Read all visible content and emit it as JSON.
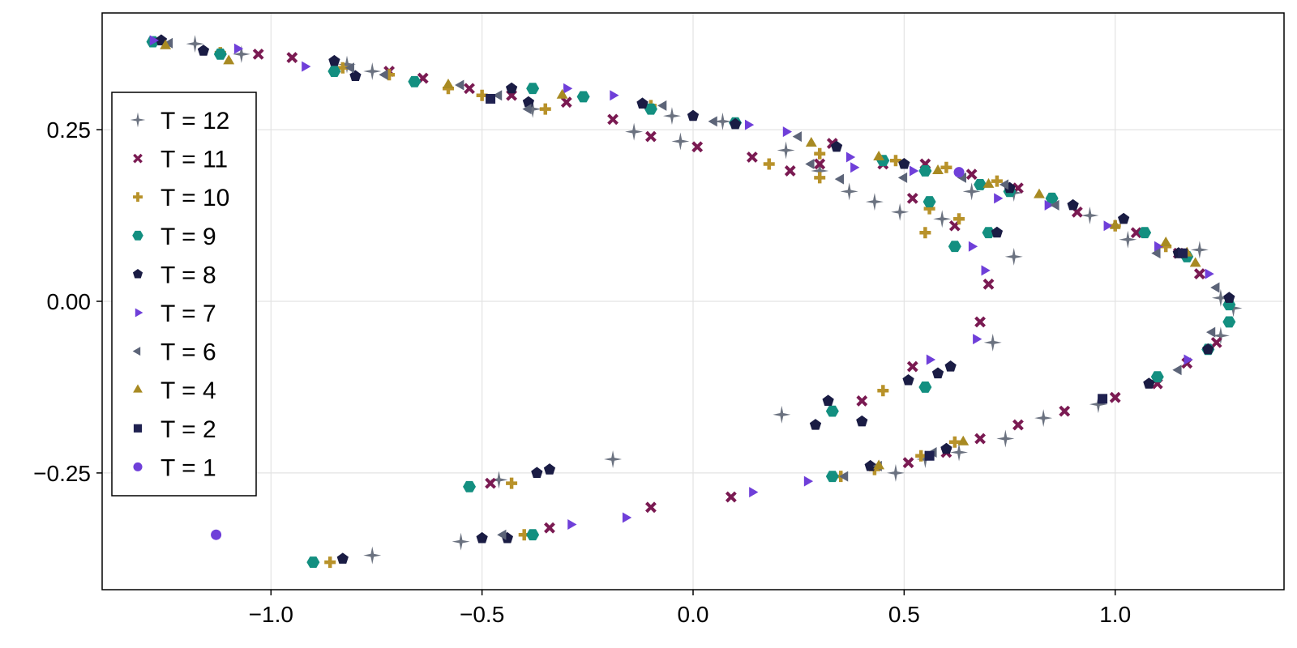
{
  "chart_data": {
    "type": "scatter",
    "title": "",
    "xlabel": "",
    "ylabel": "",
    "xlim": [
      -1.4,
      1.4
    ],
    "ylim": [
      -0.42,
      0.42
    ],
    "xticks": [
      -1.0,
      -0.5,
      0.0,
      0.5,
      1.0
    ],
    "xtick_labels": [
      "−1.0",
      "−0.5",
      "0.0",
      "0.5",
      "1.0"
    ],
    "yticks": [
      -0.25,
      0.0,
      0.25
    ],
    "ytick_labels": [
      "−0.25",
      "0.00",
      "0.25"
    ],
    "grid": true,
    "legend_position": "left",
    "series": [
      {
        "name": "T = 12",
        "marker": "star4",
        "color": "#6b7280",
        "points": [
          [
            -1.18,
            0.375
          ],
          [
            -1.07,
            0.36
          ],
          [
            -0.82,
            0.345
          ],
          [
            -0.76,
            0.335
          ],
          [
            -0.38,
            0.28
          ],
          [
            -0.14,
            0.247
          ],
          [
            -0.03,
            0.233
          ],
          [
            -0.05,
            0.27
          ],
          [
            0.07,
            0.262
          ],
          [
            0.22,
            0.22
          ],
          [
            0.3,
            0.19
          ],
          [
            0.37,
            0.16
          ],
          [
            0.43,
            0.145
          ],
          [
            0.49,
            0.13
          ],
          [
            0.59,
            0.12
          ],
          [
            0.66,
            0.16
          ],
          [
            0.76,
            0.158
          ],
          [
            0.94,
            0.125
          ],
          [
            1.03,
            0.09
          ],
          [
            1.2,
            0.075
          ],
          [
            1.25,
            0.005
          ],
          [
            1.28,
            -0.01
          ],
          [
            1.25,
            -0.05
          ],
          [
            0.96,
            -0.15
          ],
          [
            0.83,
            -0.17
          ],
          [
            0.74,
            -0.2
          ],
          [
            0.63,
            -0.22
          ],
          [
            0.55,
            -0.23
          ],
          [
            0.48,
            -0.25
          ],
          [
            0.76,
            0.065
          ],
          [
            0.71,
            -0.06
          ],
          [
            0.21,
            -0.165
          ],
          [
            -0.19,
            -0.23
          ],
          [
            -0.46,
            -0.26
          ],
          [
            -0.55,
            -0.35
          ],
          [
            -0.76,
            -0.37
          ]
        ]
      },
      {
        "name": "T = 11",
        "marker": "x",
        "color": "#7a1a52",
        "points": [
          [
            -1.03,
            0.36
          ],
          [
            -0.95,
            0.355
          ],
          [
            -0.72,
            0.335
          ],
          [
            -0.64,
            0.325
          ],
          [
            -0.53,
            0.31
          ],
          [
            -0.43,
            0.3
          ],
          [
            -0.3,
            0.29
          ],
          [
            -0.19,
            0.265
          ],
          [
            -0.1,
            0.24
          ],
          [
            0.01,
            0.225
          ],
          [
            0.14,
            0.21
          ],
          [
            0.23,
            0.19
          ],
          [
            0.33,
            0.23
          ],
          [
            0.45,
            0.2
          ],
          [
            0.55,
            0.2
          ],
          [
            0.66,
            0.185
          ],
          [
            0.77,
            0.165
          ],
          [
            0.91,
            0.13
          ],
          [
            1.05,
            0.1
          ],
          [
            1.15,
            0.07
          ],
          [
            1.2,
            0.04
          ],
          [
            1.24,
            -0.06
          ],
          [
            1.17,
            -0.09
          ],
          [
            1.1,
            -0.12
          ],
          [
            1.0,
            -0.14
          ],
          [
            0.88,
            -0.16
          ],
          [
            0.77,
            -0.18
          ],
          [
            0.68,
            -0.2
          ],
          [
            0.6,
            -0.22
          ],
          [
            0.51,
            -0.235
          ],
          [
            0.3,
            0.2
          ],
          [
            0.52,
            0.15
          ],
          [
            0.62,
            0.11
          ],
          [
            0.7,
            0.025
          ],
          [
            0.68,
            -0.03
          ],
          [
            0.52,
            -0.095
          ],
          [
            0.4,
            -0.145
          ],
          [
            0.09,
            -0.285
          ],
          [
            -0.1,
            -0.3
          ],
          [
            -0.34,
            -0.33
          ],
          [
            -0.48,
            -0.265
          ]
        ]
      },
      {
        "name": "T = 10",
        "marker": "plus",
        "color": "#b8922a",
        "points": [
          [
            -1.12,
            0.362
          ],
          [
            -0.83,
            0.34
          ],
          [
            -0.72,
            0.33
          ],
          [
            -0.58,
            0.31
          ],
          [
            -0.5,
            0.3
          ],
          [
            -0.35,
            0.28
          ],
          [
            -0.1,
            0.285
          ],
          [
            0.18,
            0.2
          ],
          [
            0.3,
            0.215
          ],
          [
            0.48,
            0.205
          ],
          [
            0.6,
            0.195
          ],
          [
            0.72,
            0.175
          ],
          [
            0.85,
            0.15
          ],
          [
            1.0,
            0.11
          ],
          [
            1.12,
            0.08
          ],
          [
            0.56,
            0.135
          ],
          [
            0.63,
            0.12
          ],
          [
            0.55,
            0.1
          ],
          [
            0.3,
            0.18
          ],
          [
            0.45,
            -0.13
          ],
          [
            0.62,
            -0.205
          ],
          [
            0.54,
            -0.225
          ],
          [
            0.43,
            -0.245
          ],
          [
            0.35,
            -0.255
          ],
          [
            -0.43,
            -0.265
          ],
          [
            -0.86,
            -0.38
          ],
          [
            -0.4,
            -0.34
          ]
        ]
      },
      {
        "name": "T = 9",
        "marker": "hexagon",
        "color": "#138f80",
        "points": [
          [
            -1.28,
            0.378
          ],
          [
            -1.12,
            0.36
          ],
          [
            -0.85,
            0.335
          ],
          [
            -0.66,
            0.32
          ],
          [
            -0.38,
            0.31
          ],
          [
            -0.26,
            0.298
          ],
          [
            -0.1,
            0.28
          ],
          [
            0.1,
            0.26
          ],
          [
            0.45,
            0.205
          ],
          [
            0.55,
            0.19
          ],
          [
            0.68,
            0.17
          ],
          [
            0.75,
            0.16
          ],
          [
            0.85,
            0.15
          ],
          [
            1.07,
            0.1
          ],
          [
            1.17,
            0.065
          ],
          [
            1.27,
            -0.005
          ],
          [
            1.27,
            -0.03
          ],
          [
            1.22,
            -0.07
          ],
          [
            1.1,
            -0.11
          ],
          [
            0.55,
            -0.125
          ],
          [
            0.56,
            0.145
          ],
          [
            0.7,
            0.1
          ],
          [
            0.62,
            0.08
          ],
          [
            0.33,
            -0.16
          ],
          [
            0.33,
            -0.255
          ],
          [
            -0.53,
            -0.27
          ],
          [
            -0.9,
            -0.38
          ],
          [
            -0.38,
            -0.34
          ]
        ]
      },
      {
        "name": "T = 8",
        "marker": "pentagon",
        "color": "#1a1c44",
        "points": [
          [
            -1.26,
            0.38
          ],
          [
            -1.16,
            0.365
          ],
          [
            -0.85,
            0.35
          ],
          [
            -0.8,
            0.328
          ],
          [
            -0.43,
            0.31
          ],
          [
            -0.39,
            0.29
          ],
          [
            -0.12,
            0.288
          ],
          [
            0.0,
            0.27
          ],
          [
            0.1,
            0.258
          ],
          [
            0.34,
            0.225
          ],
          [
            0.5,
            0.2
          ],
          [
            0.75,
            0.165
          ],
          [
            0.9,
            0.14
          ],
          [
            1.02,
            0.12
          ],
          [
            1.15,
            0.07
          ],
          [
            1.27,
            0.005
          ],
          [
            1.22,
            -0.07
          ],
          [
            1.08,
            -0.12
          ],
          [
            0.6,
            -0.215
          ],
          [
            0.42,
            -0.24
          ],
          [
            0.29,
            -0.18
          ],
          [
            0.4,
            -0.175
          ],
          [
            0.51,
            -0.115
          ],
          [
            0.61,
            -0.095
          ],
          [
            0.72,
            0.1
          ],
          [
            0.58,
            -0.105
          ],
          [
            0.32,
            -0.145
          ],
          [
            -0.37,
            -0.25
          ],
          [
            -0.34,
            -0.245
          ],
          [
            -0.83,
            -0.375
          ],
          [
            -0.5,
            -0.345
          ],
          [
            -0.44,
            -0.345
          ]
        ]
      },
      {
        "name": "T = 7",
        "marker": "triangle-right",
        "color": "#6f3fd9",
        "points": [
          [
            -1.08,
            0.368
          ],
          [
            -1.28,
            0.38
          ],
          [
            -0.92,
            0.342
          ],
          [
            -0.3,
            0.31
          ],
          [
            -0.19,
            0.3
          ],
          [
            0.13,
            0.257
          ],
          [
            0.22,
            0.247
          ],
          [
            0.38,
            0.195
          ],
          [
            0.37,
            0.21
          ],
          [
            0.52,
            0.19
          ],
          [
            0.72,
            0.15
          ],
          [
            0.84,
            0.14
          ],
          [
            0.98,
            0.11
          ],
          [
            1.1,
            0.08
          ],
          [
            1.22,
            0.04
          ],
          [
            1.17,
            -0.085
          ],
          [
            0.69,
            0.045
          ],
          [
            0.66,
            0.08
          ],
          [
            0.67,
            -0.055
          ],
          [
            0.56,
            -0.085
          ],
          [
            0.14,
            -0.278
          ],
          [
            0.27,
            -0.262
          ],
          [
            -0.16,
            -0.315
          ],
          [
            -0.29,
            -0.325
          ]
        ]
      },
      {
        "name": "T = 6",
        "marker": "triangle-left",
        "color": "#5c6478",
        "points": [
          [
            -1.24,
            0.376
          ],
          [
            -0.81,
            0.34
          ],
          [
            -0.73,
            0.33
          ],
          [
            -0.55,
            0.315
          ],
          [
            -0.46,
            0.3
          ],
          [
            -0.39,
            0.28
          ],
          [
            -0.07,
            0.285
          ],
          [
            0.05,
            0.262
          ],
          [
            0.25,
            0.24
          ],
          [
            0.28,
            0.2
          ],
          [
            0.35,
            0.178
          ],
          [
            0.5,
            0.18
          ],
          [
            0.64,
            0.18
          ],
          [
            0.74,
            0.17
          ],
          [
            0.86,
            0.14
          ],
          [
            1.1,
            0.07
          ],
          [
            1.24,
            0.02
          ],
          [
            1.23,
            -0.045
          ],
          [
            1.15,
            -0.1
          ],
          [
            0.57,
            -0.22
          ],
          [
            0.44,
            -0.24
          ],
          [
            0.36,
            -0.255
          ],
          [
            -0.45,
            -0.34
          ]
        ]
      },
      {
        "name": "T = 4",
        "marker": "triangle",
        "color": "#a88a22",
        "points": [
          [
            -1.25,
            0.372
          ],
          [
            -1.1,
            0.35
          ],
          [
            -0.58,
            0.315
          ],
          [
            -0.31,
            0.3
          ],
          [
            0.28,
            0.23
          ],
          [
            0.44,
            0.21
          ],
          [
            0.58,
            0.19
          ],
          [
            0.7,
            0.17
          ],
          [
            0.82,
            0.155
          ],
          [
            1.0,
            0.11
          ],
          [
            1.12,
            0.085
          ],
          [
            1.17,
            0.07
          ],
          [
            1.19,
            0.055
          ],
          [
            0.64,
            -0.205
          ],
          [
            0.44,
            -0.24
          ]
        ]
      },
      {
        "name": "T = 2",
        "marker": "square",
        "color": "#1f2150",
        "points": [
          [
            -0.48,
            0.295
          ],
          [
            0.97,
            -0.142
          ],
          [
            0.56,
            -0.225
          ],
          [
            1.16,
            0.07
          ]
        ]
      },
      {
        "name": "T = 1",
        "marker": "circle",
        "color": "#6f3fd9",
        "points": [
          [
            -1.13,
            -0.34
          ],
          [
            0.63,
            0.188
          ]
        ]
      }
    ]
  }
}
